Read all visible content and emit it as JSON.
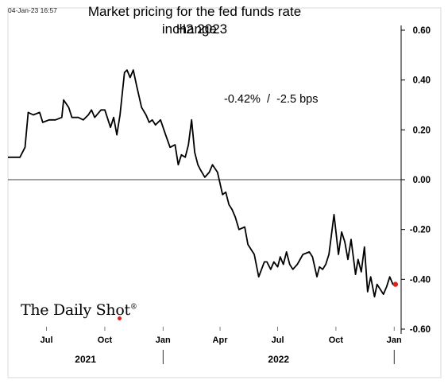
{
  "timestamp": "04-Jan-23 16:57",
  "title_line1": "Market pricing for the fed funds rate change",
  "title_line2": "in H2 2023",
  "annotation": "-0.42%  /  -2.5 bps",
  "brand": {
    "name": "The Daily Shot",
    "mark": "®",
    "dot_color": "#e02020"
  },
  "chart_data": {
    "type": "line",
    "title": "Market pricing for the fed funds rate change in H2 2023",
    "xlabel": "",
    "ylabel": "",
    "x_ticks": [
      "Jul",
      "Oct",
      "Jan",
      "Apr",
      "Jul",
      "Oct",
      "Jan"
    ],
    "year_labels": [
      "2021",
      "2022"
    ],
    "y_ticks": [
      "0.60",
      "0.40",
      "0.20",
      "0.00",
      "-0.20",
      "-0.40",
      "-0.60"
    ],
    "ylim": [
      -0.6,
      0.6
    ],
    "xlim": [
      "2021-05-01",
      "2023-01-12"
    ],
    "zero_line": true,
    "grid": false,
    "line_color": "#000000",
    "last_point_color": "#e0201e",
    "series": [
      {
        "x": [
          "2021-05-01",
          "2021-05-20",
          "2021-05-28",
          "2021-06-02",
          "2021-06-10",
          "2021-06-20",
          "2021-06-25",
          "2021-07-05",
          "2021-07-15",
          "2021-07-25",
          "2021-07-28",
          "2021-08-05",
          "2021-08-10",
          "2021-08-20",
          "2021-08-28",
          "2021-09-05",
          "2021-09-10",
          "2021-09-15",
          "2021-09-25",
          "2021-10-01",
          "2021-10-10",
          "2021-10-15",
          "2021-10-20",
          "2021-10-25",
          "2021-11-01",
          "2021-11-05",
          "2021-11-10",
          "2021-11-15",
          "2021-11-20",
          "2021-11-28",
          "2021-12-05",
          "2021-12-10",
          "2021-12-15",
          "2021-12-20",
          "2021-12-28",
          "2022-01-05",
          "2022-01-12",
          "2022-01-20",
          "2022-01-25",
          "2022-01-30",
          "2022-02-05",
          "2022-02-10",
          "2022-02-15",
          "2022-02-20",
          "2022-02-25",
          "2022-03-01",
          "2022-03-08",
          "2022-03-15",
          "2022-03-20",
          "2022-03-28",
          "2022-04-05",
          "2022-04-10",
          "2022-04-15",
          "2022-04-20",
          "2022-04-25",
          "2022-05-01",
          "2022-05-10",
          "2022-05-15",
          "2022-05-20",
          "2022-05-25",
          "2022-06-01",
          "2022-06-10",
          "2022-06-14",
          "2022-06-20",
          "2022-06-25",
          "2022-07-01",
          "2022-07-05",
          "2022-07-10",
          "2022-07-15",
          "2022-07-20",
          "2022-07-25",
          "2022-08-01",
          "2022-08-10",
          "2022-08-20",
          "2022-08-25",
          "2022-09-01",
          "2022-09-05",
          "2022-09-10",
          "2022-09-15",
          "2022-09-20",
          "2022-09-28",
          "2022-10-05",
          "2022-10-10",
          "2022-10-15",
          "2022-10-20",
          "2022-10-25",
          "2022-11-01",
          "2022-11-05",
          "2022-11-10",
          "2022-11-15",
          "2022-11-20",
          "2022-11-25",
          "2022-12-01",
          "2022-12-05",
          "2022-12-10",
          "2022-12-15",
          "2022-12-20",
          "2022-12-25",
          "2022-12-30",
          "2023-01-03"
        ],
        "y": [
          0.09,
          0.09,
          0.13,
          0.27,
          0.26,
          0.27,
          0.23,
          0.24,
          0.24,
          0.25,
          0.32,
          0.29,
          0.25,
          0.25,
          0.24,
          0.26,
          0.28,
          0.25,
          0.28,
          0.28,
          0.21,
          0.25,
          0.18,
          0.26,
          0.43,
          0.44,
          0.41,
          0.44,
          0.38,
          0.29,
          0.26,
          0.23,
          0.24,
          0.22,
          0.24,
          0.18,
          0.13,
          0.14,
          0.06,
          0.1,
          0.09,
          0.14,
          0.24,
          0.11,
          0.06,
          0.04,
          0.01,
          0.03,
          0.06,
          0.03,
          -0.06,
          -0.05,
          -0.1,
          -0.12,
          -0.15,
          -0.2,
          -0.19,
          -0.26,
          -0.28,
          -0.3,
          -0.39,
          -0.33,
          -0.33,
          -0.36,
          -0.33,
          -0.35,
          -0.31,
          -0.34,
          -0.29,
          -0.34,
          -0.36,
          -0.34,
          -0.3,
          -0.29,
          -0.31,
          -0.39,
          -0.35,
          -0.36,
          -0.34,
          -0.3,
          -0.14,
          -0.3,
          -0.21,
          -0.25,
          -0.32,
          -0.24,
          -0.38,
          -0.32,
          -0.37,
          -0.27,
          -0.45,
          -0.39,
          -0.47,
          -0.42,
          -0.44,
          -0.46,
          -0.43,
          -0.39,
          -0.42,
          -0.42
        ]
      }
    ]
  }
}
